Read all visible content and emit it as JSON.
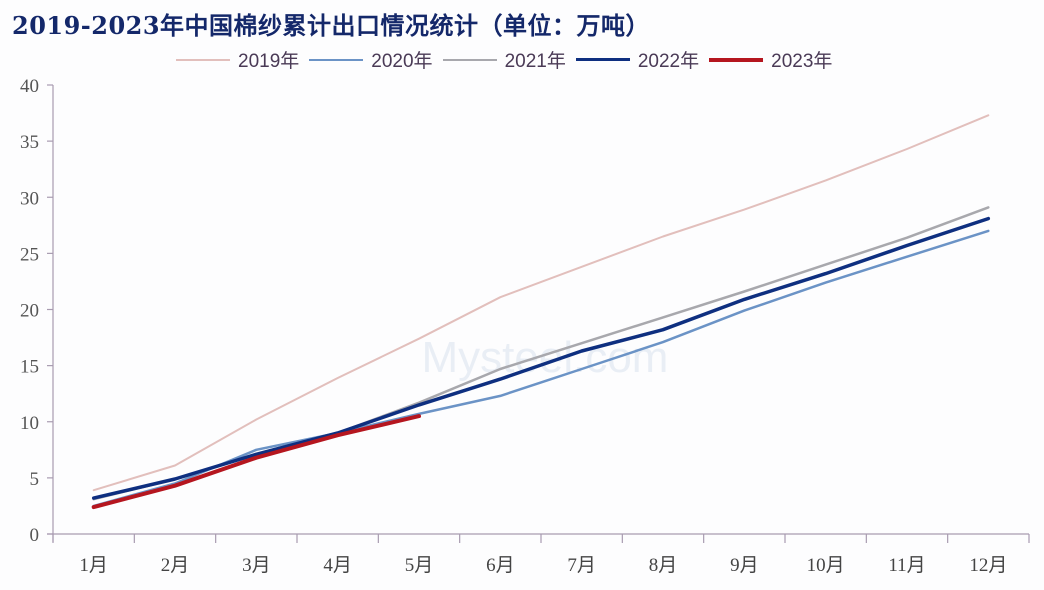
{
  "title": "2019-2023年中国棉纱累计出口情况统计（单位：万吨）",
  "chart_data": {
    "type": "line",
    "title": "2019-2023年中国棉纱累计出口情况统计（单位：万吨）",
    "xlabel": "",
    "ylabel": "",
    "unit": "万吨",
    "ylim": [
      0,
      40
    ],
    "yticks": [
      0,
      5,
      10,
      15,
      20,
      25,
      30,
      35,
      40
    ],
    "grid": false,
    "legend_position": "top",
    "categories": [
      "1月",
      "2月",
      "3月",
      "4月",
      "5月",
      "6月",
      "7月",
      "8月",
      "9月",
      "10月",
      "11月",
      "12月"
    ],
    "series": [
      {
        "name": "2019年",
        "color": "#e2bfbc",
        "width": 2,
        "values": [
          3.9,
          6.1,
          10.2,
          13.9,
          17.4,
          21.1,
          23.8,
          26.5,
          28.9,
          31.5,
          34.3,
          37.3
        ]
      },
      {
        "name": "2020年",
        "color": "#6b93c6",
        "width": 2.5,
        "values": [
          2.5,
          4.5,
          7.5,
          9.0,
          10.7,
          12.3,
          14.7,
          17.1,
          19.9,
          22.4,
          24.7,
          27.0
        ]
      },
      {
        "name": "2021年",
        "color": "#a8a8ad",
        "width": 2.5,
        "values": [
          3.1,
          4.9,
          7.1,
          9.0,
          11.7,
          14.7,
          17.0,
          19.3,
          21.6,
          24.0,
          26.4,
          29.1
        ]
      },
      {
        "name": "2022年",
        "color": "#0e2f80",
        "width": 3.5,
        "values": [
          3.2,
          4.9,
          7.1,
          9.0,
          11.5,
          13.8,
          16.3,
          18.2,
          20.9,
          23.2,
          25.7,
          28.1
        ]
      },
      {
        "name": "2023年",
        "color": "#b5161f",
        "width": 4,
        "values": [
          2.4,
          4.3,
          6.8,
          8.8,
          10.5
        ]
      }
    ]
  },
  "watermark": "Mysteel.com"
}
